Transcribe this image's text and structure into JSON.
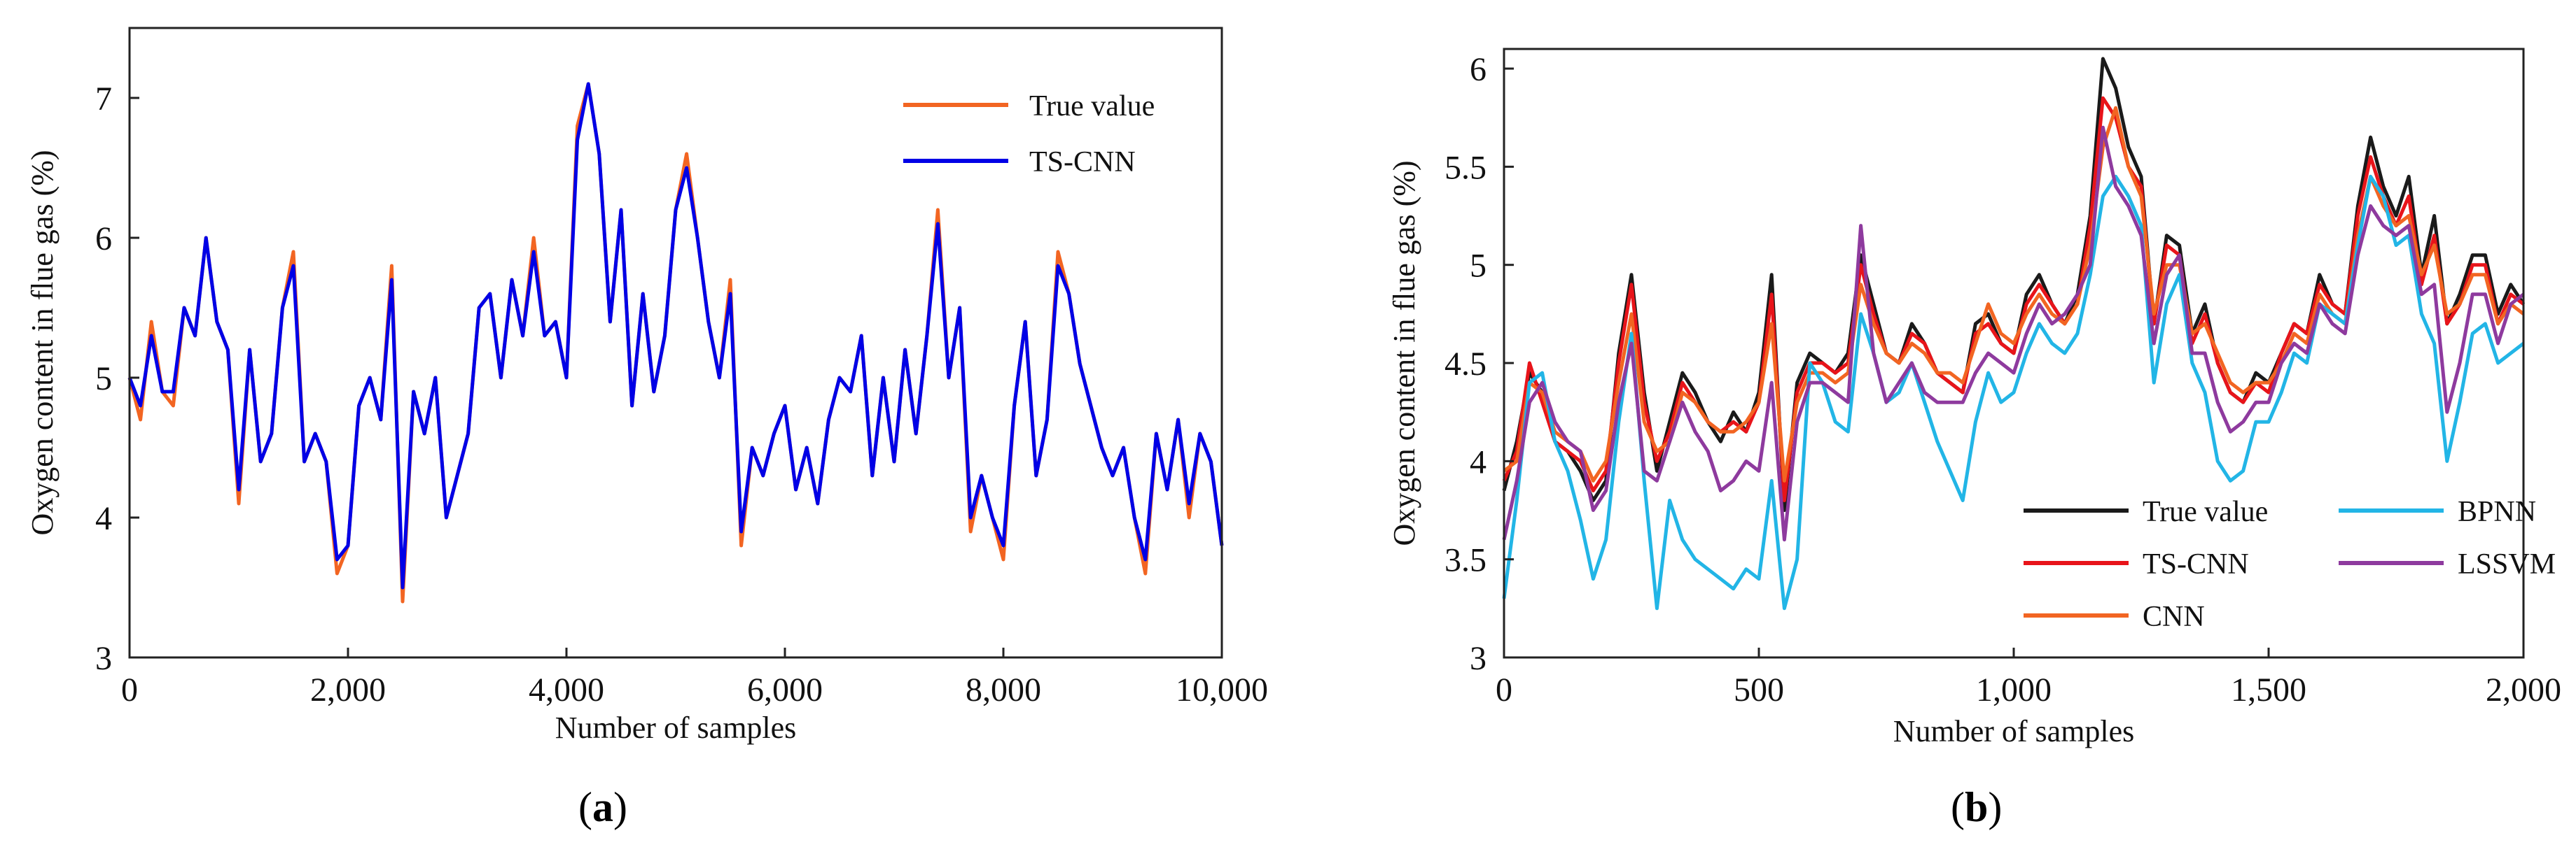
{
  "captions": {
    "a": "a",
    "b": "b"
  },
  "chart_data": [
    {
      "id": "a",
      "type": "line",
      "title": "",
      "xlabel": "Number of samples",
      "ylabel": "Oxygen content in flue gas  (%)",
      "xlim": [
        0,
        10000
      ],
      "ylim": [
        3,
        7.5
      ],
      "xticks": [
        0,
        2000,
        4000,
        6000,
        8000,
        10000
      ],
      "xtick_labels": [
        "0",
        "2,000",
        "4,000",
        "6,000",
        "8,000",
        "10,000"
      ],
      "yticks": [
        3,
        4,
        5,
        6,
        7
      ],
      "ytick_labels": [
        "3",
        "4",
        "5",
        "6",
        "7"
      ],
      "grid": false,
      "legend": "top-right",
      "x": [
        0,
        100,
        200,
        300,
        400,
        500,
        600,
        700,
        800,
        900,
        1000,
        1100,
        1200,
        1300,
        1400,
        1500,
        1600,
        1700,
        1800,
        1900,
        2000,
        2100,
        2200,
        2300,
        2400,
        2500,
        2600,
        2700,
        2800,
        2900,
        3000,
        3100,
        3200,
        3300,
        3400,
        3500,
        3600,
        3700,
        3800,
        3900,
        4000,
        4100,
        4200,
        4300,
        4400,
        4500,
        4600,
        4700,
        4800,
        4900,
        5000,
        5100,
        5200,
        5300,
        5400,
        5500,
        5600,
        5700,
        5800,
        5900,
        6000,
        6100,
        6200,
        6300,
        6400,
        6500,
        6600,
        6700,
        6800,
        6900,
        7000,
        7100,
        7200,
        7300,
        7400,
        7500,
        7600,
        7700,
        7800,
        7900,
        8000,
        8100,
        8200,
        8300,
        8400,
        8500,
        8600,
        8700,
        8800,
        8900,
        9000,
        9100,
        9200,
        9300,
        9400,
        9500,
        9600,
        9700,
        9800,
        9900,
        10000
      ],
      "series": [
        {
          "name": "True value",
          "color": "#f26522",
          "values": [
            5.0,
            4.7,
            5.4,
            4.9,
            4.8,
            5.5,
            5.3,
            6.0,
            5.4,
            5.2,
            4.1,
            5.2,
            4.4,
            4.6,
            5.5,
            5.9,
            4.4,
            4.6,
            4.4,
            3.6,
            3.8,
            4.8,
            5.0,
            4.7,
            5.8,
            3.4,
            4.9,
            4.6,
            5.0,
            4.0,
            4.3,
            4.6,
            5.5,
            5.6,
            5.0,
            5.7,
            5.3,
            6.0,
            5.3,
            5.4,
            5.0,
            6.8,
            7.1,
            6.6,
            5.4,
            6.2,
            4.8,
            5.6,
            4.9,
            5.3,
            6.2,
            6.6,
            6.0,
            5.4,
            5.0,
            5.7,
            3.8,
            4.5,
            4.3,
            4.6,
            4.8,
            4.2,
            4.5,
            4.1,
            4.7,
            5.0,
            4.9,
            5.3,
            4.3,
            5.0,
            4.4,
            5.2,
            4.6,
            5.3,
            6.2,
            5.0,
            5.5,
            3.9,
            4.3,
            4.0,
            3.7,
            4.8,
            5.4,
            4.3,
            4.7,
            5.9,
            5.6,
            5.1,
            4.8,
            4.5,
            4.3,
            4.5,
            4.0,
            3.6,
            4.6,
            4.2,
            4.7,
            4.0,
            4.6,
            4.4,
            3.8
          ]
        },
        {
          "name": "TS-CNN",
          "color": "#0000e6",
          "values": [
            5.0,
            4.8,
            5.3,
            4.9,
            4.9,
            5.5,
            5.3,
            6.0,
            5.4,
            5.2,
            4.2,
            5.2,
            4.4,
            4.6,
            5.5,
            5.8,
            4.4,
            4.6,
            4.4,
            3.7,
            3.8,
            4.8,
            5.0,
            4.7,
            5.7,
            3.5,
            4.9,
            4.6,
            5.0,
            4.0,
            4.3,
            4.6,
            5.5,
            5.6,
            5.0,
            5.7,
            5.3,
            5.9,
            5.3,
            5.4,
            5.0,
            6.7,
            7.1,
            6.6,
            5.4,
            6.2,
            4.8,
            5.6,
            4.9,
            5.3,
            6.2,
            6.5,
            6.0,
            5.4,
            5.0,
            5.6,
            3.9,
            4.5,
            4.3,
            4.6,
            4.8,
            4.2,
            4.5,
            4.1,
            4.7,
            5.0,
            4.9,
            5.3,
            4.3,
            5.0,
            4.4,
            5.2,
            4.6,
            5.3,
            6.1,
            5.0,
            5.5,
            4.0,
            4.3,
            4.0,
            3.8,
            4.8,
            5.4,
            4.3,
            4.7,
            5.8,
            5.6,
            5.1,
            4.8,
            4.5,
            4.3,
            4.5,
            4.0,
            3.7,
            4.6,
            4.2,
            4.7,
            4.1,
            4.6,
            4.4,
            3.8
          ]
        }
      ]
    },
    {
      "id": "b",
      "type": "line",
      "title": "",
      "xlabel": "Number of samples",
      "ylabel": "Oxygen content in flue gas  (%)",
      "xlim": [
        0,
        2000
      ],
      "ylim": [
        3,
        6.1
      ],
      "xticks": [
        0,
        500,
        1000,
        1500,
        2000
      ],
      "xtick_labels": [
        "0",
        "500",
        "1,000",
        "1,500",
        "2,000"
      ],
      "yticks": [
        3,
        3.5,
        4,
        4.5,
        5,
        5.5,
        6
      ],
      "ytick_labels": [
        "3",
        "3.5",
        "4",
        "4.5",
        "5",
        "5.5",
        "6"
      ],
      "grid": false,
      "legend": "bottom-right",
      "x": [
        0,
        25,
        50,
        75,
        100,
        125,
        150,
        175,
        200,
        225,
        250,
        275,
        300,
        325,
        350,
        375,
        400,
        425,
        450,
        475,
        500,
        525,
        550,
        575,
        600,
        625,
        650,
        675,
        700,
        725,
        750,
        775,
        800,
        825,
        850,
        875,
        900,
        925,
        950,
        975,
        1000,
        1025,
        1050,
        1075,
        1100,
        1125,
        1150,
        1175,
        1200,
        1225,
        1250,
        1275,
        1300,
        1325,
        1350,
        1375,
        1400,
        1425,
        1450,
        1475,
        1500,
        1525,
        1550,
        1575,
        1600,
        1625,
        1650,
        1675,
        1700,
        1725,
        1750,
        1775,
        1800,
        1825,
        1850,
        1875,
        1900,
        1925,
        1950,
        1975,
        2000
      ],
      "series": [
        {
          "name": "True value",
          "color": "#1a1a1a",
          "values": [
            3.85,
            4.1,
            4.45,
            4.35,
            4.1,
            4.05,
            3.95,
            3.8,
            3.9,
            4.55,
            4.95,
            4.35,
            3.95,
            4.2,
            4.45,
            4.35,
            4.2,
            4.1,
            4.25,
            4.15,
            4.35,
            4.95,
            3.75,
            4.4,
            4.55,
            4.5,
            4.45,
            4.55,
            5.05,
            4.8,
            4.55,
            4.5,
            4.7,
            4.6,
            4.45,
            4.4,
            4.35,
            4.7,
            4.75,
            4.6,
            4.55,
            4.85,
            4.95,
            4.8,
            4.7,
            4.85,
            5.25,
            6.05,
            5.9,
            5.6,
            5.45,
            4.7,
            5.15,
            5.1,
            4.65,
            4.8,
            4.5,
            4.35,
            4.3,
            4.45,
            4.4,
            4.55,
            4.7,
            4.65,
            4.95,
            4.8,
            4.75,
            5.3,
            5.65,
            5.4,
            5.25,
            5.45,
            4.95,
            5.25,
            4.7,
            4.85,
            5.05,
            5.05,
            4.75,
            4.9,
            4.8
          ]
        },
        {
          "name": "TS-CNN",
          "color": "#e8141a",
          "values": [
            3.9,
            4.05,
            4.5,
            4.3,
            4.1,
            4.05,
            4.0,
            3.85,
            3.95,
            4.5,
            4.9,
            4.3,
            4.0,
            4.15,
            4.4,
            4.3,
            4.2,
            4.15,
            4.2,
            4.15,
            4.3,
            4.85,
            3.8,
            4.35,
            4.5,
            4.5,
            4.45,
            4.5,
            5.0,
            4.75,
            4.55,
            4.5,
            4.65,
            4.6,
            4.45,
            4.4,
            4.35,
            4.65,
            4.7,
            4.6,
            4.55,
            4.8,
            4.9,
            4.8,
            4.7,
            4.8,
            5.2,
            5.85,
            5.75,
            5.5,
            5.4,
            4.7,
            5.1,
            5.05,
            4.6,
            4.75,
            4.5,
            4.35,
            4.3,
            4.4,
            4.35,
            4.55,
            4.7,
            4.65,
            4.9,
            4.8,
            4.75,
            5.25,
            5.55,
            5.35,
            5.2,
            5.35,
            4.9,
            5.15,
            4.7,
            4.8,
            5.0,
            5.0,
            4.7,
            4.85,
            4.8
          ]
        },
        {
          "name": "CNN",
          "color": "#f26522",
          "values": [
            3.95,
            4.0,
            4.4,
            4.35,
            4.15,
            4.1,
            4.05,
            3.9,
            4.0,
            4.4,
            4.75,
            4.2,
            4.05,
            4.1,
            4.35,
            4.3,
            4.2,
            4.15,
            4.15,
            4.2,
            4.3,
            4.7,
            3.9,
            4.3,
            4.45,
            4.45,
            4.4,
            4.45,
            4.9,
            4.7,
            4.55,
            4.5,
            4.6,
            4.55,
            4.45,
            4.45,
            4.4,
            4.6,
            4.8,
            4.65,
            4.6,
            4.75,
            4.85,
            4.75,
            4.7,
            4.8,
            5.1,
            5.6,
            5.8,
            5.5,
            5.35,
            4.75,
            5.0,
            5.0,
            4.65,
            4.7,
            4.55,
            4.4,
            4.35,
            4.4,
            4.4,
            4.5,
            4.65,
            4.6,
            4.85,
            4.75,
            4.7,
            5.15,
            5.45,
            5.3,
            5.2,
            5.25,
            4.95,
            5.1,
            4.75,
            4.8,
            4.95,
            4.95,
            4.7,
            4.8,
            4.75
          ]
        },
        {
          "name": "BPNN",
          "color": "#22b5e6",
          "values": [
            3.3,
            3.8,
            4.4,
            4.45,
            4.1,
            3.95,
            3.7,
            3.4,
            3.6,
            4.2,
            4.65,
            3.9,
            3.25,
            3.8,
            3.6,
            3.5,
            3.45,
            3.4,
            3.35,
            3.45,
            3.4,
            3.9,
            3.25,
            3.5,
            4.5,
            4.4,
            4.2,
            4.15,
            4.75,
            4.55,
            4.3,
            4.35,
            4.5,
            4.3,
            4.1,
            3.95,
            3.8,
            4.2,
            4.45,
            4.3,
            4.35,
            4.55,
            4.7,
            4.6,
            4.55,
            4.65,
            4.95,
            5.35,
            5.45,
            5.35,
            5.2,
            4.4,
            4.8,
            4.95,
            4.5,
            4.35,
            4.0,
            3.9,
            3.95,
            4.2,
            4.2,
            4.35,
            4.55,
            4.5,
            4.8,
            4.75,
            4.7,
            5.1,
            5.45,
            5.35,
            5.1,
            5.15,
            4.75,
            4.6,
            4.0,
            4.3,
            4.65,
            4.7,
            4.5,
            4.55,
            4.6
          ]
        },
        {
          "name": "LSSVM",
          "color": "#8e3a9e",
          "values": [
            3.6,
            3.9,
            4.3,
            4.4,
            4.2,
            4.1,
            4.05,
            3.75,
            3.85,
            4.3,
            4.6,
            3.95,
            3.9,
            4.1,
            4.3,
            4.15,
            4.05,
            3.85,
            3.9,
            4.0,
            3.95,
            4.4,
            3.6,
            4.2,
            4.4,
            4.4,
            4.35,
            4.3,
            5.2,
            4.55,
            4.3,
            4.4,
            4.5,
            4.35,
            4.3,
            4.3,
            4.3,
            4.45,
            4.55,
            4.5,
            4.45,
            4.65,
            4.8,
            4.7,
            4.75,
            4.85,
            5.0,
            5.7,
            5.4,
            5.3,
            5.15,
            4.6,
            4.95,
            5.05,
            4.55,
            4.55,
            4.3,
            4.15,
            4.2,
            4.3,
            4.3,
            4.5,
            4.6,
            4.55,
            4.8,
            4.7,
            4.65,
            5.05,
            5.3,
            5.2,
            5.15,
            5.2,
            4.85,
            4.9,
            4.25,
            4.5,
            4.85,
            4.85,
            4.6,
            4.8,
            4.85
          ]
        }
      ]
    }
  ]
}
